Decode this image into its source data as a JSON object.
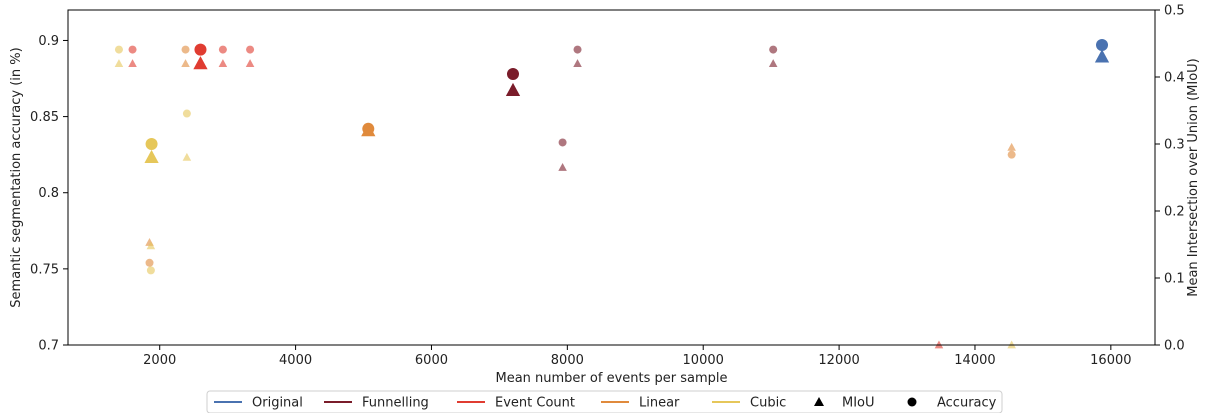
{
  "chart_data": {
    "type": "scatter",
    "xlabel": "Mean number of events per sample",
    "ylabel": "Semantic segmentation accuracy (in %)",
    "y2label": "Mean Intersection over Union (MIoU)",
    "xlim": [
      650,
      16650
    ],
    "ylim": [
      0.7,
      0.92
    ],
    "y2lim": [
      0.0,
      0.5
    ],
    "xticks": [
      2000,
      4000,
      6000,
      8000,
      10000,
      12000,
      14000,
      16000
    ],
    "yticks": [
      0.7,
      0.75,
      0.8,
      0.85,
      0.9
    ],
    "ytick_labels": [
      "0.7",
      "0.75",
      "0.8",
      "0.85",
      "0.9"
    ],
    "y2ticks": [
      0.0,
      0.1,
      0.2,
      0.3,
      0.4,
      0.5
    ],
    "y2tick_labels": [
      "0.0",
      "0.1",
      "0.2",
      "0.3",
      "0.4",
      "0.5"
    ],
    "grid": false,
    "legend_position": "bottom",
    "colors": {
      "Original": "#4a72b0",
      "Funnelling": "#7a1c2a",
      "Event Count": "#e03c31",
      "Linear": "#e08a3c",
      "Cubic": "#e6c75a"
    },
    "legend": [
      {
        "label": "Original",
        "kind": "line",
        "color": "#4a72b0"
      },
      {
        "label": "Funnelling",
        "kind": "line",
        "color": "#7a1c2a"
      },
      {
        "label": "Event Count",
        "kind": "line",
        "color": "#e03c31"
      },
      {
        "label": "Linear",
        "kind": "line",
        "color": "#e08a3c"
      },
      {
        "label": "Cubic",
        "kind": "line",
        "color": "#e6c75a"
      },
      {
        "label": "MIoU",
        "kind": "triangle",
        "color": "#000000"
      },
      {
        "label": "Accuracy",
        "kind": "circle",
        "color": "#000000"
      }
    ],
    "accuracy_points": [
      {
        "series": "Cubic",
        "x": 1400,
        "y": 0.894,
        "highlight": false
      },
      {
        "series": "Event Count",
        "x": 1600,
        "y": 0.894,
        "highlight": false
      },
      {
        "series": "Linear",
        "x": 2380,
        "y": 0.894,
        "highlight": false
      },
      {
        "series": "Event Count",
        "x": 2600,
        "y": 0.894,
        "highlight": true
      },
      {
        "series": "Event Count",
        "x": 2930,
        "y": 0.894,
        "highlight": false
      },
      {
        "series": "Event Count",
        "x": 3330,
        "y": 0.894,
        "highlight": false
      },
      {
        "series": "Cubic",
        "x": 1880,
        "y": 0.832,
        "highlight": true
      },
      {
        "series": "Cubic",
        "x": 2400,
        "y": 0.852,
        "highlight": false
      },
      {
        "series": "Linear",
        "x": 1850,
        "y": 0.754,
        "highlight": false
      },
      {
        "series": "Cubic",
        "x": 1870,
        "y": 0.749,
        "highlight": false
      },
      {
        "series": "Linear",
        "x": 5070,
        "y": 0.842,
        "highlight": true
      },
      {
        "series": "Funnelling",
        "x": 7200,
        "y": 0.878,
        "highlight": true
      },
      {
        "series": "Funnelling",
        "x": 7930,
        "y": 0.833,
        "highlight": false
      },
      {
        "series": "Funnelling",
        "x": 8150,
        "y": 0.894,
        "highlight": false
      },
      {
        "series": "Funnelling",
        "x": 11030,
        "y": 0.894,
        "highlight": false
      },
      {
        "series": "Linear",
        "x": 14540,
        "y": 0.825,
        "highlight": false
      },
      {
        "series": "Original",
        "x": 15870,
        "y": 0.897,
        "highlight": true
      }
    ],
    "miou_points": [
      {
        "series": "Cubic",
        "x": 1400,
        "y": 0.42,
        "highlight": false
      },
      {
        "series": "Event Count",
        "x": 1600,
        "y": 0.42,
        "highlight": false
      },
      {
        "series": "Linear",
        "x": 2380,
        "y": 0.42,
        "highlight": false
      },
      {
        "series": "Event Count",
        "x": 2600,
        "y": 0.42,
        "highlight": true
      },
      {
        "series": "Event Count",
        "x": 2930,
        "y": 0.42,
        "highlight": false
      },
      {
        "series": "Event Count",
        "x": 3330,
        "y": 0.42,
        "highlight": false
      },
      {
        "series": "Cubic",
        "x": 1880,
        "y": 0.28,
        "highlight": true
      },
      {
        "series": "Cubic",
        "x": 2400,
        "y": 0.28,
        "highlight": false
      },
      {
        "series": "Linear",
        "x": 1850,
        "y": 0.153,
        "highlight": false
      },
      {
        "series": "Cubic",
        "x": 1870,
        "y": 0.148,
        "highlight": false
      },
      {
        "series": "Linear",
        "x": 5070,
        "y": 0.32,
        "highlight": true
      },
      {
        "series": "Funnelling",
        "x": 7200,
        "y": 0.38,
        "highlight": true
      },
      {
        "series": "Funnelling",
        "x": 7930,
        "y": 0.265,
        "highlight": false
      },
      {
        "series": "Funnelling",
        "x": 8150,
        "y": 0.42,
        "highlight": false
      },
      {
        "series": "Funnelling",
        "x": 11030,
        "y": 0.42,
        "highlight": false
      },
      {
        "series": "Linear",
        "x": 14540,
        "y": 0.295,
        "highlight": false
      },
      {
        "series": "Original",
        "x": 15870,
        "y": 0.43,
        "highlight": true
      },
      {
        "series": "Event Count",
        "x": 13470,
        "y": 0.0,
        "highlight": false
      },
      {
        "series": "Cubic",
        "x": 14540,
        "y": 0.0,
        "highlight": false
      }
    ]
  }
}
